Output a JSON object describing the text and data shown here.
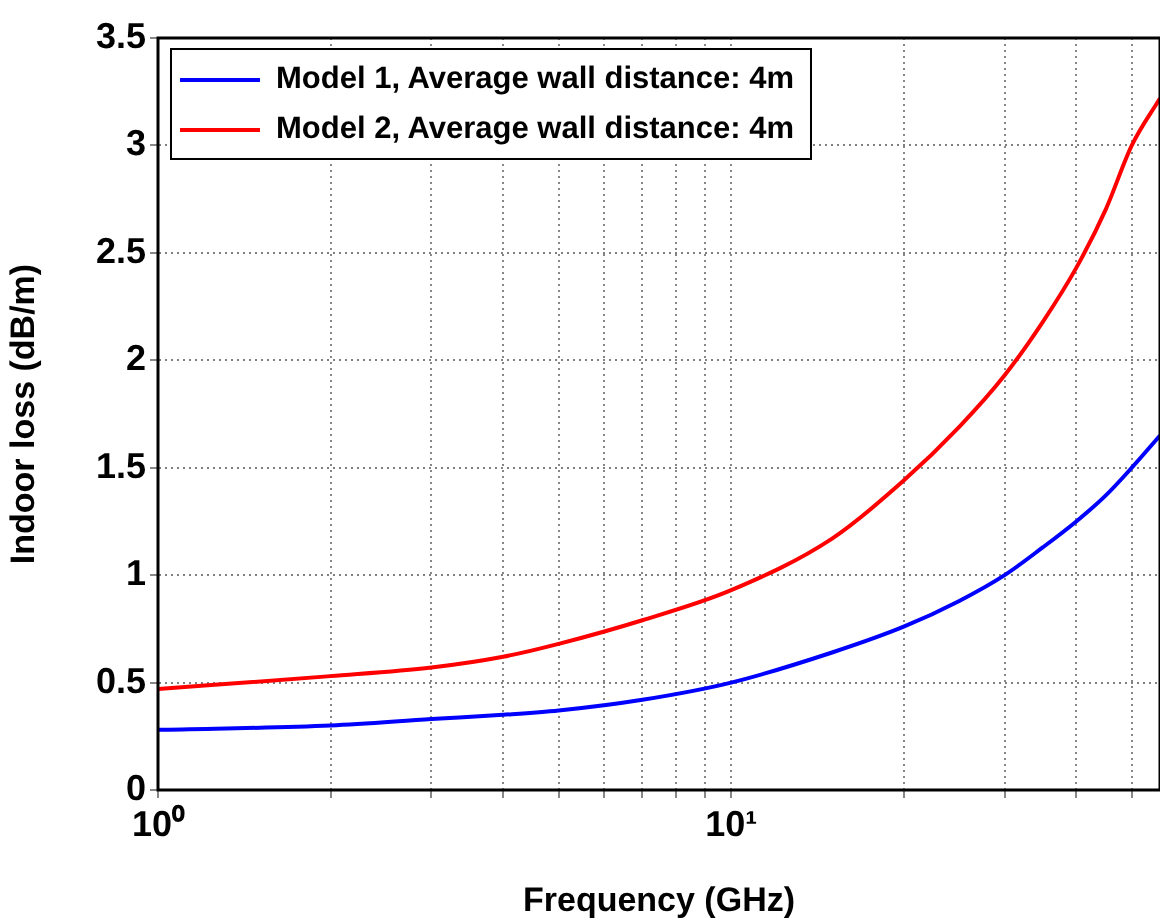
{
  "chart_data": {
    "type": "line",
    "xlabel": "Frequency (GHz)",
    "ylabel": "Indoor loss (dB/m)",
    "log": "x",
    "x": [
      1,
      2,
      3,
      4,
      5,
      7,
      10,
      15,
      20,
      25,
      30,
      35,
      40,
      45,
      50,
      56
    ],
    "series": [
      {
        "name": "Model 1, Average wall distance: 4m",
        "color": "#0000ff",
        "values": [
          0.28,
          0.3,
          0.33,
          0.35,
          0.37,
          0.42,
          0.5,
          0.64,
          0.76,
          0.88,
          1.0,
          1.13,
          1.25,
          1.37,
          1.5,
          1.65
        ]
      },
      {
        "name": "Model 2, Average wall distance: 4m",
        "color": "#ff0000",
        "values": [
          0.47,
          0.53,
          0.57,
          0.62,
          0.68,
          0.79,
          0.93,
          1.17,
          1.44,
          1.69,
          1.93,
          2.18,
          2.43,
          2.7,
          3.0,
          3.22
        ]
      }
    ],
    "xlim": [
      1,
      56
    ],
    "xticks": [
      {
        "value": 1,
        "label": "10⁰"
      },
      {
        "value": 2,
        "label": null
      },
      {
        "value": 3,
        "label": null
      },
      {
        "value": 4,
        "label": null
      },
      {
        "value": 5,
        "label": null
      },
      {
        "value": 6,
        "label": null
      },
      {
        "value": 7,
        "label": null
      },
      {
        "value": 8,
        "label": null
      },
      {
        "value": 9,
        "label": null
      },
      {
        "value": 10,
        "label": "10¹"
      },
      {
        "value": 20,
        "label": null
      },
      {
        "value": 30,
        "label": null
      },
      {
        "value": 40,
        "label": null
      },
      {
        "value": 50,
        "label": null
      }
    ],
    "ylim": [
      0,
      3.5
    ],
    "yticks": [
      0,
      0.5,
      1,
      1.5,
      2,
      2.5,
      3,
      3.5
    ],
    "grid": true,
    "legend": "top left",
    "marker": "none",
    "line_style": "solid"
  }
}
